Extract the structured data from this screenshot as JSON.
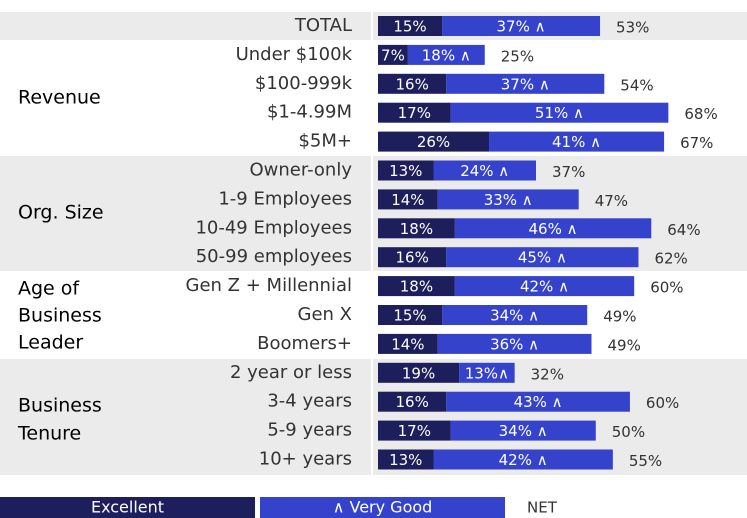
{
  "chart_data": {
    "type": "stacked-bar",
    "categories": [
      "TOTAL",
      "Under $100k",
      "$100-999k",
      "$1-4.99M",
      "$5M+",
      "Owner-only",
      "1-9 Employees",
      "10-49 Employees",
      "50-99 employees",
      "Gen Z + Millennial",
      "Gen X",
      "Boomers+",
      "2 year or less",
      "3-4 years",
      "5-9 years",
      "10+ years"
    ],
    "groups": [
      [
        "Revenue"
      ],
      [
        "Org. Size"
      ],
      [
        "Age of",
        "Business",
        "Leader"
      ],
      [
        "Business",
        "Tenure"
      ]
    ],
    "series": [
      {
        "name": "Excellent",
        "color": "#1c1f5c",
        "values": [
          15,
          7,
          16,
          17,
          26,
          13,
          14,
          18,
          16,
          18,
          15,
          14,
          19,
          16,
          17,
          13
        ],
        "value_labels": [
          "15%",
          "7%",
          "16%",
          "17%",
          "26%",
          "13%",
          "14%",
          "18%",
          "16%",
          "18%",
          "15%",
          "14%",
          "19%",
          "16%",
          "17%",
          "13%"
        ]
      },
      {
        "name": "∧ Very Good",
        "color": "#3442cc",
        "values": [
          37,
          18,
          37,
          51,
          41,
          24,
          33,
          46,
          45,
          42,
          34,
          36,
          13,
          43,
          34,
          42
        ],
        "value_labels": [
          "37% ∧",
          "18% ∧",
          "37% ∧",
          "51% ∧",
          "41% ∧",
          "24% ∧",
          "33% ∧",
          "46% ∧",
          "45% ∧",
          "42% ∧",
          "34% ∧",
          "36% ∧",
          "13%∧",
          "43% ∧",
          "34% ∧",
          "42% ∧"
        ]
      }
    ],
    "net": {
      "name": "NET",
      "values": [
        53,
        25,
        54,
        68,
        67,
        37,
        47,
        64,
        62,
        60,
        49,
        49,
        32,
        60,
        50,
        55
      ],
      "value_labels": [
        "53%",
        "25%",
        "54%",
        "68%",
        "67%",
        "37%",
        "47%",
        "64%",
        "62%",
        "60%",
        "49%",
        "49%",
        "32%",
        "60%",
        "50%",
        "55%"
      ]
    }
  }
}
